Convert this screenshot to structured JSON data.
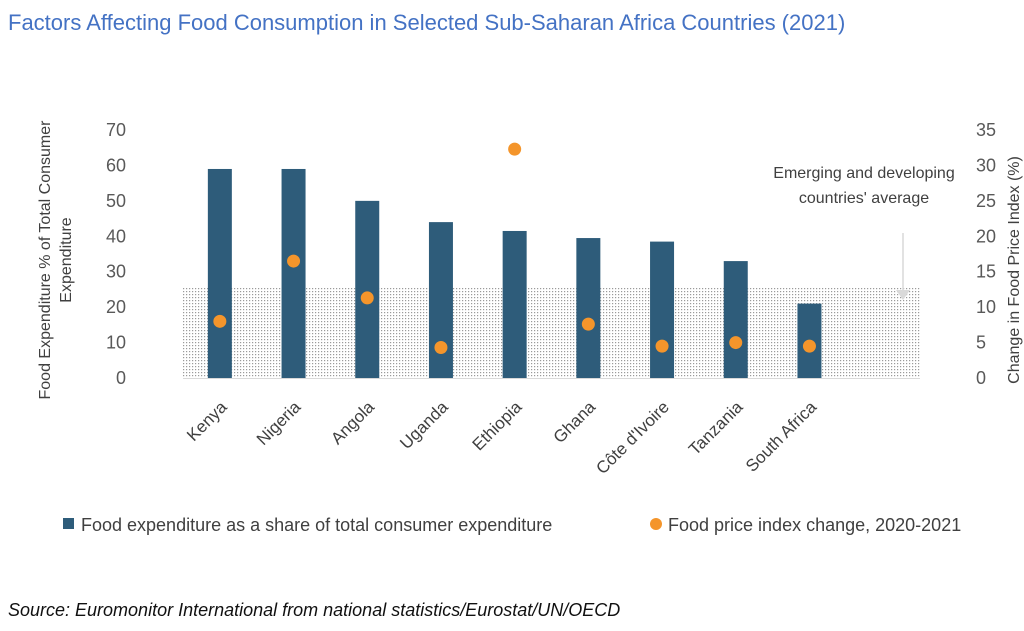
{
  "title": "Factors Affecting Food Consumption in Selected Sub-Saharan Africa Countries (2021)",
  "source": "Source: Euromonitor International from national statistics/Eurostat/UN/OECD",
  "colors": {
    "bar": "#2E5C7A",
    "dot": "#F4952B",
    "title": "#4472C4",
    "band": "#BFBFBF"
  },
  "chart_data": {
    "type": "bar",
    "categories": [
      "Kenya",
      "Nigeria",
      "Angola",
      "Uganda",
      "Ethiopia",
      "Ghana",
      "Côte d'Ivoire",
      "Tanzania",
      "South Africa"
    ],
    "series": [
      {
        "name": "Food expenditure as a share of total consumer expenditure",
        "type": "bar",
        "axis": "left",
        "values": [
          59,
          59,
          50,
          44,
          41.5,
          39.5,
          38.5,
          33,
          21
        ]
      },
      {
        "name": "Food price index change, 2020-2021",
        "type": "scatter",
        "axis": "right",
        "values": [
          8,
          16.5,
          11.3,
          4.3,
          32.3,
          7.6,
          4.5,
          5,
          4.5
        ]
      }
    ],
    "reference_band": {
      "label_line1": "Emerging and developing",
      "label_line2": "countries' average",
      "value": 25.5,
      "axis": "left"
    },
    "ylabel_line1": "Food Expenditure % of Total Consumer",
    "ylabel_line2": "Expenditure",
    "y2label": "Change in Food Price Index (%)",
    "ylim": [
      0,
      70
    ],
    "y2lim": [
      0,
      35
    ],
    "yticks": [
      "0",
      "10",
      "20",
      "30",
      "40",
      "50",
      "60",
      "70"
    ],
    "y2ticks": [
      "0",
      "5",
      "10",
      "15",
      "20",
      "25",
      "30",
      "35"
    ]
  }
}
